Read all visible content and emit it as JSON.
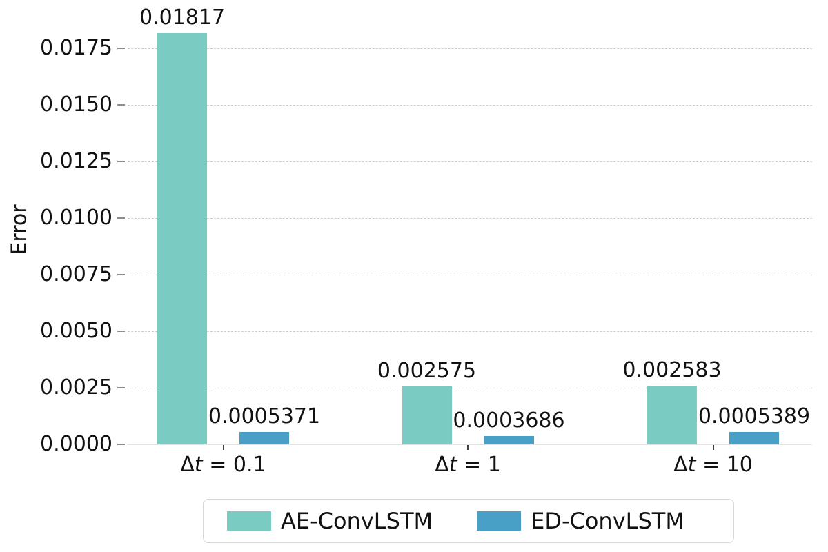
{
  "figure": {
    "ylabel": "Error"
  },
  "chart_data": {
    "type": "bar",
    "title": "",
    "xlabel": "",
    "ylabel": "Error",
    "categories": [
      "Δt = 0.1",
      "Δt = 1",
      "Δt = 10"
    ],
    "series": [
      {
        "name": "AE-ConvLSTM",
        "color": "#7ACCC2",
        "values": [
          0.01817,
          0.002575,
          0.002583
        ],
        "value_labels": [
          "0.01817",
          "0.002575",
          "0.002583"
        ]
      },
      {
        "name": "ED-ConvLSTM",
        "color": "#48A0C6",
        "values": [
          0.0005371,
          0.0003686,
          0.0005389
        ],
        "value_labels": [
          "0.0005371",
          "0.0003686",
          "0.0005389"
        ]
      }
    ],
    "ylim": [
      0,
      0.0196
    ],
    "yticks": [
      0.0,
      0.0025,
      0.005,
      0.0075,
      0.01,
      0.0125,
      0.015,
      0.0175
    ],
    "ytick_labels": [
      "0.0000",
      "0.0025",
      "0.0050",
      "0.0075",
      "0.0100",
      "0.0125",
      "0.0150",
      "0.0175"
    ],
    "grid": "horizontal-dashed",
    "legend_position": "bottom-outside"
  }
}
